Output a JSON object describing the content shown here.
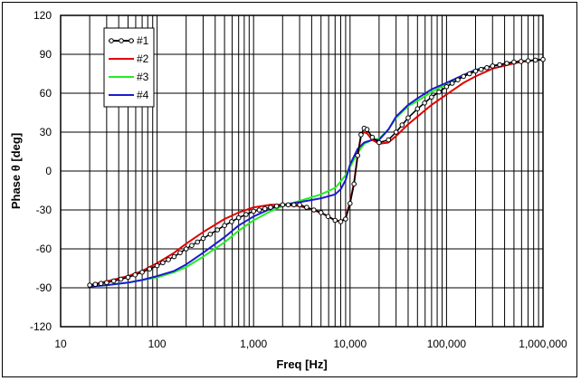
{
  "chart_data": {
    "type": "line",
    "xlabel": "Freq [Hz]",
    "ylabel": "Phase θ [deg]",
    "x_scale": "log",
    "xlim": [
      10,
      1000000
    ],
    "ylim": [
      -120,
      120
    ],
    "x_ticks": [
      {
        "value": 10,
        "label": "10"
      },
      {
        "value": 100,
        "label": "100"
      },
      {
        "value": 1000,
        "label": "1,000"
      },
      {
        "value": 10000,
        "label": "10,000"
      },
      {
        "value": 100000,
        "label": "100,000"
      },
      {
        "value": 1000000,
        "label": "1,000,000"
      }
    ],
    "y_ticks": [
      {
        "value": 120,
        "label": "120"
      },
      {
        "value": 90,
        "label": "90"
      },
      {
        "value": 60,
        "label": "60"
      },
      {
        "value": 30,
        "label": "30"
      },
      {
        "value": 0,
        "label": "0"
      },
      {
        "value": -30,
        "label": "-30"
      },
      {
        "value": -60,
        "label": "-60"
      },
      {
        "value": -90,
        "label": "-90"
      },
      {
        "value": -120,
        "label": "-120"
      }
    ],
    "grid": true,
    "legend_position": "top-left",
    "series": [
      {
        "name": "#1",
        "color": "#000000",
        "marker": "circle",
        "x": [
          20,
          30,
          50,
          70,
          100,
          150,
          200,
          300,
          500,
          700,
          1000,
          1500,
          2000,
          3000,
          5000,
          7000,
          8000,
          9000,
          10000,
          11000,
          12000,
          13000,
          14000,
          15000,
          17000,
          20000,
          25000,
          30000,
          40000,
          50000,
          70000,
          100000,
          150000,
          200000,
          300000,
          500000,
          700000,
          1000000
        ],
        "y": [
          -88,
          -86,
          -82,
          -78,
          -73,
          -66,
          -60,
          -52,
          -42,
          -36,
          -31,
          -28,
          -26,
          -26,
          -32,
          -38,
          -39,
          -37,
          -25,
          -10,
          12,
          28,
          33,
          32,
          26,
          22,
          24,
          30,
          41,
          48,
          57,
          65,
          73,
          77,
          81,
          84,
          85,
          86
        ]
      },
      {
        "name": "#2",
        "color": "#e00000",
        "marker": "none",
        "x": [
          20,
          30,
          50,
          70,
          100,
          150,
          200,
          300,
          500,
          700,
          1000,
          1500,
          2000,
          3000,
          5000,
          7000,
          8000,
          9000,
          10000,
          11000,
          12000,
          13000,
          14000,
          15000,
          17000,
          20000,
          25000,
          30000,
          40000,
          50000,
          70000,
          100000,
          150000,
          200000,
          300000,
          500000,
          700000,
          1000000
        ],
        "y": [
          -88,
          -85,
          -81,
          -77,
          -71,
          -63,
          -56,
          -47,
          -37,
          -32,
          -28,
          -26,
          -26,
          -27,
          -32,
          -38,
          -39,
          -36,
          -24,
          -9,
          12,
          27,
          30,
          29,
          24,
          21,
          22,
          27,
          36,
          42,
          51,
          59,
          68,
          73,
          79,
          83,
          85,
          86
        ]
      },
      {
        "name": "#3",
        "color": "#22ee22",
        "marker": "none",
        "x": [
          20,
          30,
          50,
          70,
          100,
          150,
          200,
          300,
          500,
          700,
          1000,
          1500,
          2000,
          3000,
          5000,
          7000,
          8000,
          9000,
          10000,
          12000,
          14000,
          17000,
          20000,
          25000,
          30000,
          40000,
          50000,
          70000,
          100000,
          150000,
          200000,
          300000,
          500000,
          700000,
          1000000
        ],
        "y": [
          -89,
          -88,
          -86,
          -84,
          -82,
          -78,
          -74,
          -66,
          -55,
          -46,
          -38,
          -31,
          -27,
          -23,
          -18,
          -13,
          -8,
          -3,
          3,
          14,
          21,
          24,
          25,
          32,
          41,
          50,
          54,
          61,
          67,
          74,
          78,
          81,
          84,
          85,
          86
        ]
      },
      {
        "name": "#4",
        "color": "#1a1ad0",
        "marker": "none",
        "x": [
          20,
          30,
          50,
          70,
          100,
          150,
          200,
          300,
          500,
          700,
          1000,
          1500,
          2000,
          3000,
          5000,
          7000,
          8000,
          9000,
          10000,
          12000,
          14000,
          17000,
          20000,
          25000,
          30000,
          40000,
          50000,
          70000,
          100000,
          150000,
          200000,
          300000,
          500000,
          700000,
          1000000
        ],
        "y": [
          -89,
          -88,
          -86,
          -84,
          -81,
          -77,
          -72,
          -63,
          -51,
          -42,
          -35,
          -29,
          -26,
          -24,
          -21,
          -18,
          -14,
          -7,
          5,
          17,
          22,
          24,
          24,
          32,
          42,
          51,
          56,
          63,
          68,
          74,
          78,
          81,
          84,
          85,
          86
        ]
      }
    ]
  }
}
